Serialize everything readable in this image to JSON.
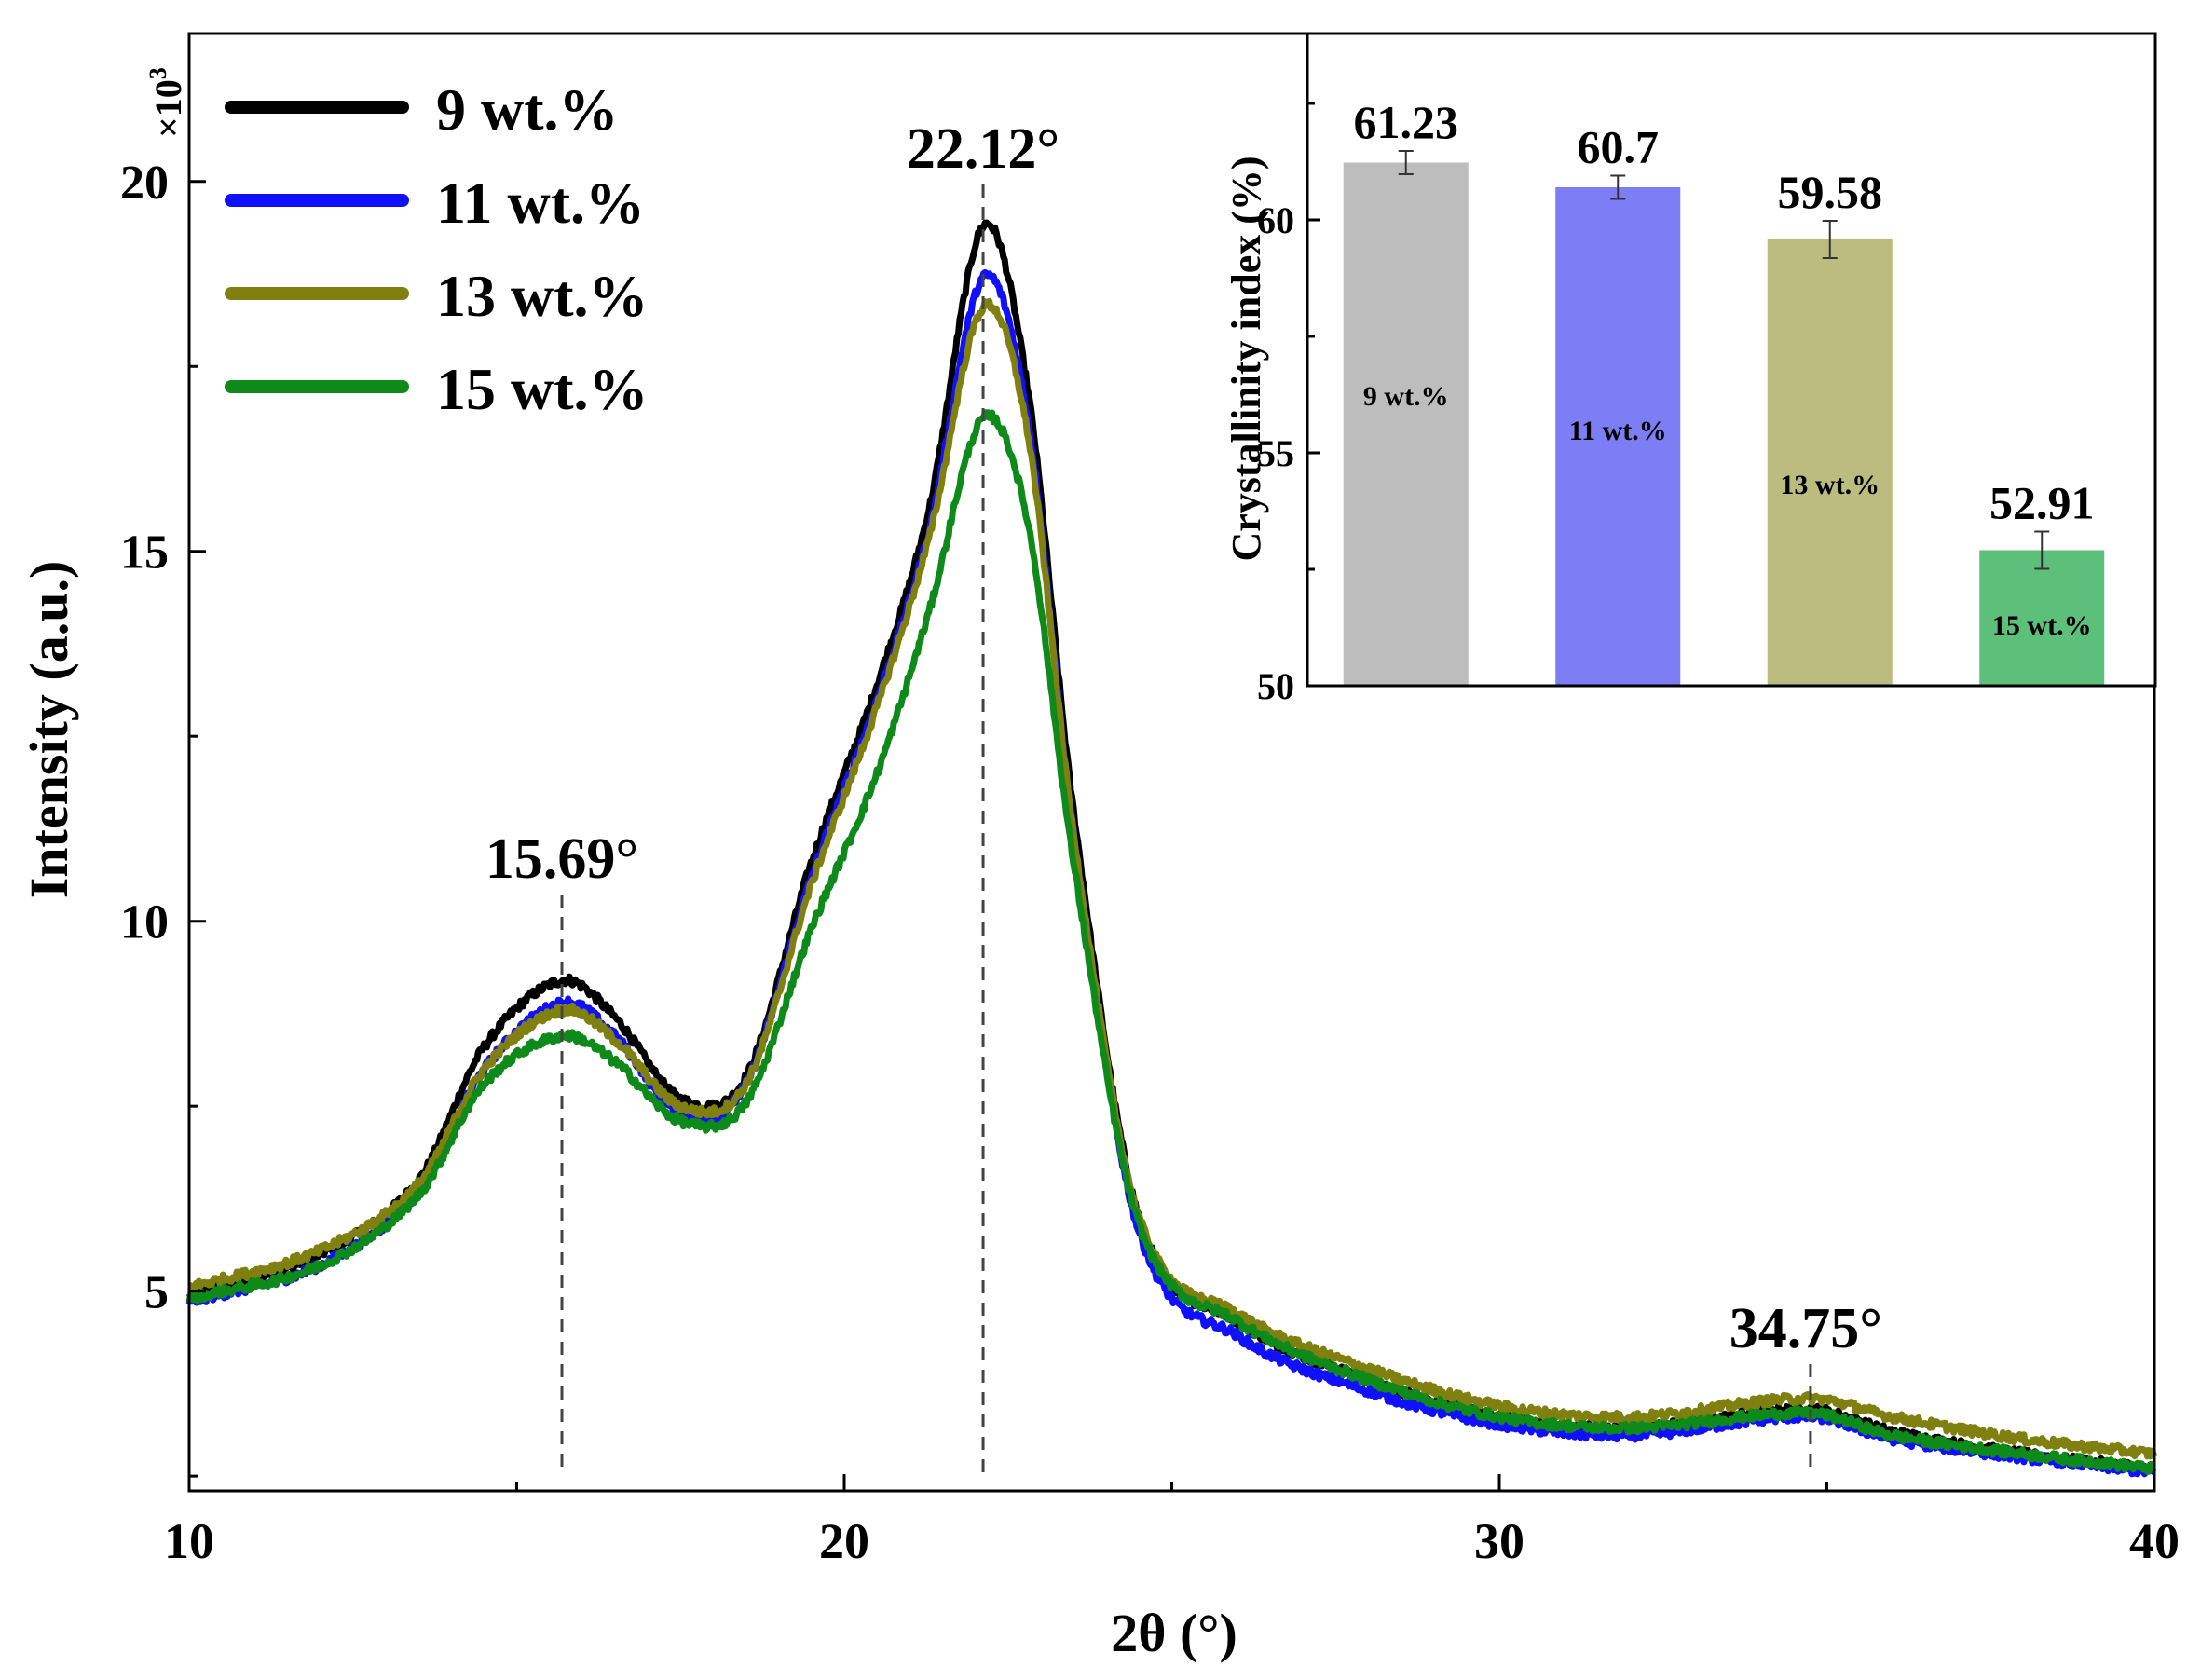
{
  "chart_data": [
    {
      "type": "line",
      "title": "",
      "xlabel": "2θ (°)",
      "ylabel": "Intensity (a.u.)",
      "y_multiplier_label": "×10",
      "y_multiplier_exp": "3",
      "xlim": [
        10,
        40
      ],
      "ylim": [
        2.3,
        22
      ],
      "x_ticks": [
        "10",
        "20",
        "30",
        "40"
      ],
      "y_ticks": [
        "5",
        "10",
        "15",
        "20"
      ],
      "grid": false,
      "legend_position": "top-left",
      "series": [
        {
          "name": "9 wt.%",
          "color": "#000000",
          "x": [
            10,
            12,
            13.5,
            14.5,
            15.69,
            16.5,
            17.5,
            18.5,
            19.5,
            20.5,
            21.3,
            22.12,
            22.8,
            23.5,
            24.5,
            26,
            28,
            30,
            32,
            34.75,
            36,
            38,
            40
          ],
          "y": [
            4.95,
            5.5,
            6.5,
            8.3,
            9.2,
            8.7,
            7.6,
            7.9,
            10.8,
            13.2,
            15.6,
            19.4,
            17.2,
            11.5,
            6.0,
            4.6,
            3.8,
            3.3,
            3.15,
            3.4,
            3.1,
            2.8,
            2.6
          ]
        },
        {
          "name": "11 wt.%",
          "color": "#1010ff",
          "x": [
            10,
            12,
            13.5,
            14.5,
            15.69,
            16.5,
            17.5,
            18.5,
            19.5,
            20.5,
            21.3,
            22.12,
            22.8,
            23.5,
            24.5,
            26,
            28,
            30,
            32,
            34.75,
            36,
            38,
            40
          ],
          "y": [
            4.85,
            5.35,
            6.35,
            8.0,
            8.9,
            8.45,
            7.4,
            7.8,
            10.6,
            13.0,
            15.3,
            18.7,
            16.8,
            11.2,
            5.8,
            4.4,
            3.65,
            3.2,
            3.05,
            3.3,
            3.0,
            2.75,
            2.55
          ]
        },
        {
          "name": "13 wt.%",
          "color": "#808010",
          "x": [
            10,
            12,
            13.5,
            14.5,
            15.69,
            16.5,
            17.5,
            18.5,
            19.5,
            20.5,
            21.3,
            22.12,
            22.8,
            23.5,
            24.5,
            26,
            28,
            30,
            32,
            34.75,
            36,
            38,
            40
          ],
          "y": [
            5.05,
            5.55,
            6.45,
            8.0,
            8.8,
            8.4,
            7.5,
            7.8,
            10.5,
            12.9,
            15.2,
            18.3,
            16.6,
            11.2,
            6.0,
            4.7,
            3.95,
            3.45,
            3.3,
            3.55,
            3.3,
            3.0,
            2.8
          ]
        },
        {
          "name": "15 wt.%",
          "color": "#0e8a1a",
          "x": [
            10,
            12,
            13.5,
            14.5,
            15.69,
            16.5,
            17.5,
            18.5,
            19.5,
            20.5,
            21.3,
            22.12,
            22.8,
            23.5,
            24.5,
            26,
            28,
            30,
            32,
            34.75,
            36,
            38,
            40
          ],
          "y": [
            4.9,
            5.35,
            6.3,
            7.8,
            8.45,
            8.1,
            7.3,
            7.55,
            9.9,
            12.0,
            14.2,
            16.8,
            15.4,
            10.8,
            5.9,
            4.6,
            3.8,
            3.3,
            3.15,
            3.35,
            3.05,
            2.8,
            2.6
          ]
        }
      ],
      "annotations": [
        {
          "text": "15.69°",
          "x": 15.69
        },
        {
          "text": "22.12°",
          "x": 22.12
        },
        {
          "text": "34.75°",
          "x": 34.75
        }
      ]
    },
    {
      "type": "bar",
      "title": "",
      "xlabel": "",
      "ylabel": "Crystallinity index (%)",
      "ylim": [
        50,
        64
      ],
      "y_ticks": [
        "50",
        "55",
        "60"
      ],
      "categories": [
        "9 wt.%",
        "11 wt.%",
        "13 wt.%",
        "15 wt.%"
      ],
      "values": [
        61.23,
        60.7,
        59.58,
        52.91
      ],
      "value_labels": [
        "61.23",
        "60.7",
        "59.58",
        "52.91"
      ],
      "errors": [
        0.25,
        0.25,
        0.4,
        0.4
      ],
      "colors": [
        "#bdbdbd",
        "#7d7df5",
        "#bcbc80",
        "#5cc07a"
      ],
      "legend_position": "none"
    }
  ]
}
